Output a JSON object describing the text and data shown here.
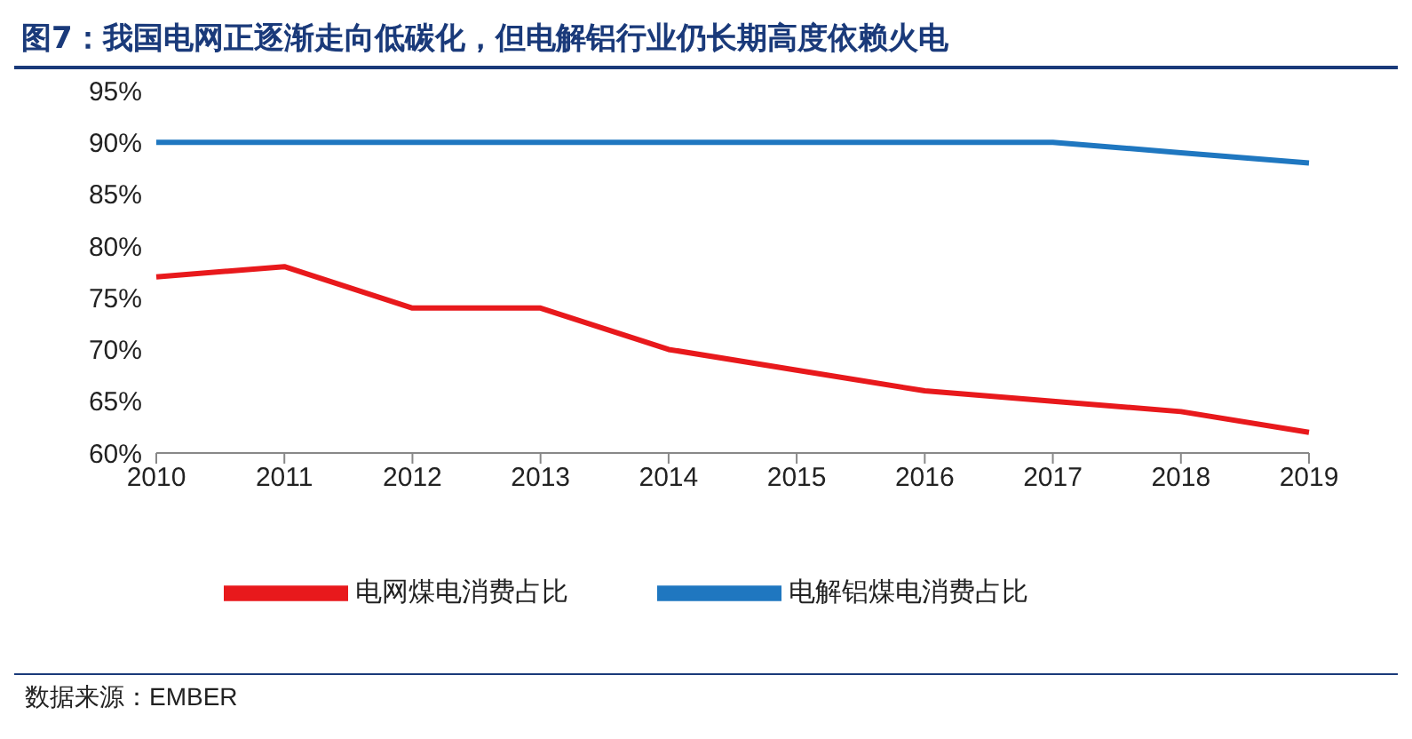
{
  "chart_data": {
    "type": "line",
    "title": "图7：我国电网正逐渐走向低碳化，但电解铝行业仍长期高度依赖火电",
    "categories": [
      "2010",
      "2011",
      "2012",
      "2013",
      "2014",
      "2015",
      "2016",
      "2017",
      "2018",
      "2019"
    ],
    "series": [
      {
        "name": "电解铝煤电消费占比",
        "color": "#1f77c0",
        "values": [
          90,
          90,
          90,
          90,
          90,
          90,
          90,
          90,
          89,
          88
        ]
      },
      {
        "name": "电网煤电消费占比",
        "color": "#e8191c",
        "values": [
          77,
          78,
          74,
          74,
          70,
          68,
          66,
          65,
          64,
          62
        ]
      }
    ],
    "ylim": [
      60,
      95
    ],
    "yticks": [
      {
        "value": 60,
        "label": "60%"
      },
      {
        "value": 65,
        "label": "65%"
      },
      {
        "value": 70,
        "label": "70%"
      },
      {
        "value": 75,
        "label": "75%"
      },
      {
        "value": 80,
        "label": "80%"
      },
      {
        "value": 85,
        "label": "85%"
      },
      {
        "value": 90,
        "label": "90%"
      },
      {
        "value": 95,
        "label": "95%"
      }
    ],
    "grid": false,
    "legend": "bottom",
    "marker": "none",
    "line_style": "solid",
    "annotations": [
      "数据来源：EMBER"
    ]
  }
}
